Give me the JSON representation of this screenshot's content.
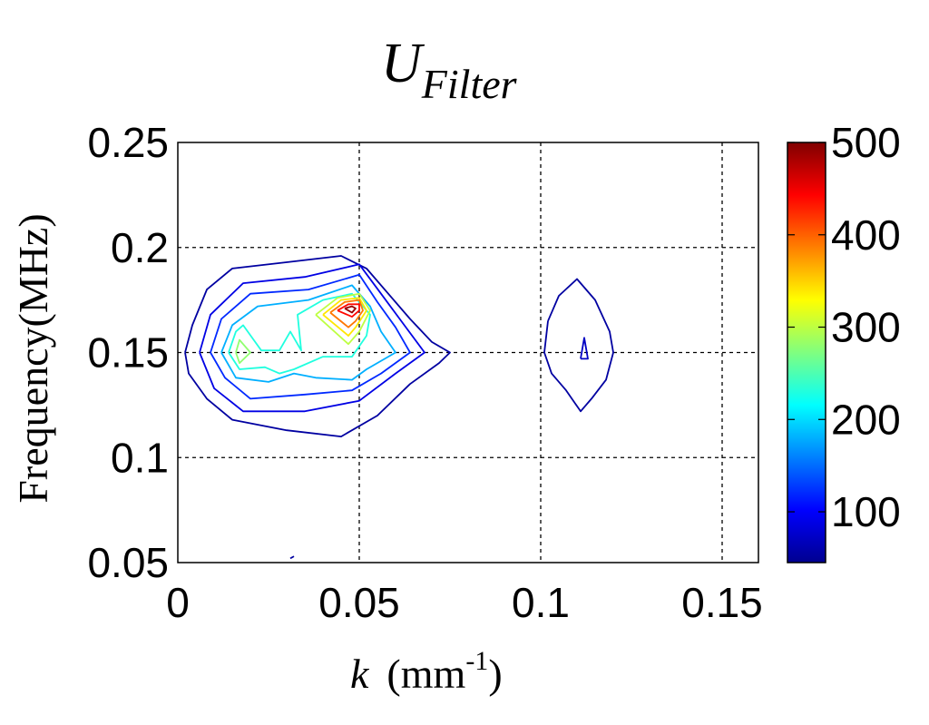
{
  "chart_data": {
    "type": "contour",
    "title": "U",
    "title_subscript": "Filter",
    "xlabel_main": "k",
    "xlabel_unit": "(mm",
    "xlabel_exponent": "-1",
    "xlabel_close": ")",
    "ylabel": "Frequency(MHz)",
    "xlim": [
      0,
      0.16
    ],
    "ylim": [
      0.05,
      0.25
    ],
    "x_ticks": [
      0,
      0.05,
      0.1,
      0.15
    ],
    "x_tick_labels": [
      "0",
      "0.05",
      "0.1",
      "0.15"
    ],
    "y_ticks": [
      0.05,
      0.1,
      0.15,
      0.2,
      0.25
    ],
    "y_tick_labels": [
      "0.05",
      "0.1",
      "0.15",
      "0.2",
      "0.25"
    ],
    "grid": true,
    "colorbar": {
      "range": [
        45,
        500
      ],
      "ticks": [
        100,
        200,
        300,
        400,
        500
      ],
      "tick_labels": [
        "100",
        "200",
        "300",
        "400",
        "500"
      ],
      "colormap": "jet"
    },
    "contours": [
      {
        "level": 60,
        "points": [
          [
            0.002,
            0.15
          ],
          [
            0.004,
            0.163
          ],
          [
            0.008,
            0.18
          ],
          [
            0.015,
            0.19
          ],
          [
            0.03,
            0.193
          ],
          [
            0.045,
            0.196
          ],
          [
            0.052,
            0.19
          ],
          [
            0.058,
            0.178
          ],
          [
            0.064,
            0.166
          ],
          [
            0.07,
            0.155
          ],
          [
            0.075,
            0.15
          ],
          [
            0.072,
            0.145
          ],
          [
            0.064,
            0.135
          ],
          [
            0.055,
            0.12
          ],
          [
            0.045,
            0.11
          ],
          [
            0.03,
            0.113
          ],
          [
            0.015,
            0.118
          ],
          [
            0.008,
            0.128
          ],
          [
            0.003,
            0.14
          ],
          [
            0.002,
            0.15
          ]
        ]
      },
      {
        "level": 60,
        "points": [
          [
            0.102,
            0.165
          ],
          [
            0.105,
            0.177
          ],
          [
            0.11,
            0.185
          ],
          [
            0.115,
            0.175
          ],
          [
            0.119,
            0.16
          ],
          [
            0.12,
            0.15
          ],
          [
            0.118,
            0.137
          ],
          [
            0.114,
            0.128
          ],
          [
            0.111,
            0.122
          ],
          [
            0.107,
            0.132
          ],
          [
            0.103,
            0.14
          ],
          [
            0.101,
            0.15
          ],
          [
            0.102,
            0.165
          ]
        ]
      },
      {
        "level": 75,
        "points": [
          [
            0.111,
            0.147
          ],
          [
            0.112,
            0.157
          ],
          [
            0.113,
            0.147
          ],
          [
            0.111,
            0.147
          ]
        ]
      },
      {
        "level": 60,
        "points": [
          [
            0.031,
            0.052
          ],
          [
            0.032,
            0.053
          ]
        ]
      },
      {
        "level": 90,
        "points": [
          [
            0.006,
            0.15
          ],
          [
            0.009,
            0.168
          ],
          [
            0.018,
            0.183
          ],
          [
            0.035,
            0.186
          ],
          [
            0.05,
            0.192
          ],
          [
            0.056,
            0.178
          ],
          [
            0.062,
            0.164
          ],
          [
            0.068,
            0.15
          ],
          [
            0.06,
            0.14
          ],
          [
            0.05,
            0.127
          ],
          [
            0.035,
            0.122
          ],
          [
            0.018,
            0.122
          ],
          [
            0.01,
            0.133
          ],
          [
            0.006,
            0.15
          ]
        ]
      },
      {
        "level": 120,
        "points": [
          [
            0.009,
            0.15
          ],
          [
            0.012,
            0.166
          ],
          [
            0.02,
            0.178
          ],
          [
            0.036,
            0.18
          ],
          [
            0.05,
            0.187
          ],
          [
            0.055,
            0.174
          ],
          [
            0.06,
            0.162
          ],
          [
            0.064,
            0.15
          ],
          [
            0.056,
            0.14
          ],
          [
            0.048,
            0.132
          ],
          [
            0.035,
            0.13
          ],
          [
            0.02,
            0.128
          ],
          [
            0.013,
            0.138
          ],
          [
            0.009,
            0.15
          ]
        ]
      },
      {
        "level": 180,
        "points": [
          [
            0.012,
            0.15
          ],
          [
            0.015,
            0.163
          ],
          [
            0.022,
            0.172
          ],
          [
            0.036,
            0.175
          ],
          [
            0.048,
            0.182
          ],
          [
            0.053,
            0.172
          ],
          [
            0.056,
            0.16
          ],
          [
            0.06,
            0.15
          ],
          [
            0.052,
            0.142
          ],
          [
            0.048,
            0.137
          ],
          [
            0.038,
            0.138
          ],
          [
            0.032,
            0.14
          ],
          [
            0.025,
            0.136
          ],
          [
            0.016,
            0.138
          ],
          [
            0.012,
            0.15
          ]
        ]
      },
      {
        "level": 230,
        "points": [
          [
            0.014,
            0.15
          ],
          [
            0.016,
            0.16
          ],
          [
            0.018,
            0.163
          ],
          [
            0.023,
            0.151
          ],
          [
            0.028,
            0.151
          ],
          [
            0.031,
            0.16
          ],
          [
            0.034,
            0.151
          ],
          [
            0.033,
            0.168
          ],
          [
            0.04,
            0.175
          ],
          [
            0.048,
            0.178
          ],
          [
            0.053,
            0.168
          ],
          [
            0.052,
            0.158
          ],
          [
            0.048,
            0.148
          ],
          [
            0.04,
            0.148
          ],
          [
            0.032,
            0.142
          ],
          [
            0.028,
            0.14
          ],
          [
            0.024,
            0.143
          ],
          [
            0.017,
            0.142
          ],
          [
            0.014,
            0.15
          ]
        ]
      },
      {
        "level": 280,
        "points": [
          [
            0.016,
            0.15
          ],
          [
            0.017,
            0.156
          ],
          [
            0.02,
            0.15
          ],
          [
            0.017,
            0.145
          ],
          [
            0.016,
            0.15
          ]
        ]
      },
      {
        "level": 300,
        "points": [
          [
            0.038,
            0.168
          ],
          [
            0.044,
            0.176
          ],
          [
            0.05,
            0.178
          ],
          [
            0.053,
            0.17
          ],
          [
            0.05,
            0.16
          ],
          [
            0.047,
            0.154
          ],
          [
            0.038,
            0.168
          ]
        ]
      },
      {
        "level": 340,
        "points": [
          [
            0.04,
            0.168
          ],
          [
            0.045,
            0.175
          ],
          [
            0.05,
            0.176
          ],
          [
            0.052,
            0.17
          ],
          [
            0.049,
            0.162
          ],
          [
            0.047,
            0.158
          ],
          [
            0.04,
            0.168
          ]
        ]
      },
      {
        "level": 390,
        "points": [
          [
            0.042,
            0.169
          ],
          [
            0.046,
            0.174
          ],
          [
            0.05,
            0.175
          ],
          [
            0.051,
            0.17
          ],
          [
            0.049,
            0.165
          ],
          [
            0.047,
            0.162
          ],
          [
            0.042,
            0.169
          ]
        ]
      },
      {
        "level": 440,
        "points": [
          [
            0.044,
            0.17
          ],
          [
            0.047,
            0.173
          ],
          [
            0.05,
            0.173
          ],
          [
            0.05,
            0.17
          ],
          [
            0.048,
            0.167
          ],
          [
            0.044,
            0.17
          ]
        ]
      },
      {
        "level": 490,
        "points": [
          [
            0.046,
            0.171
          ],
          [
            0.048,
            0.172
          ],
          [
            0.049,
            0.171
          ],
          [
            0.048,
            0.169
          ],
          [
            0.046,
            0.171
          ]
        ]
      }
    ]
  }
}
